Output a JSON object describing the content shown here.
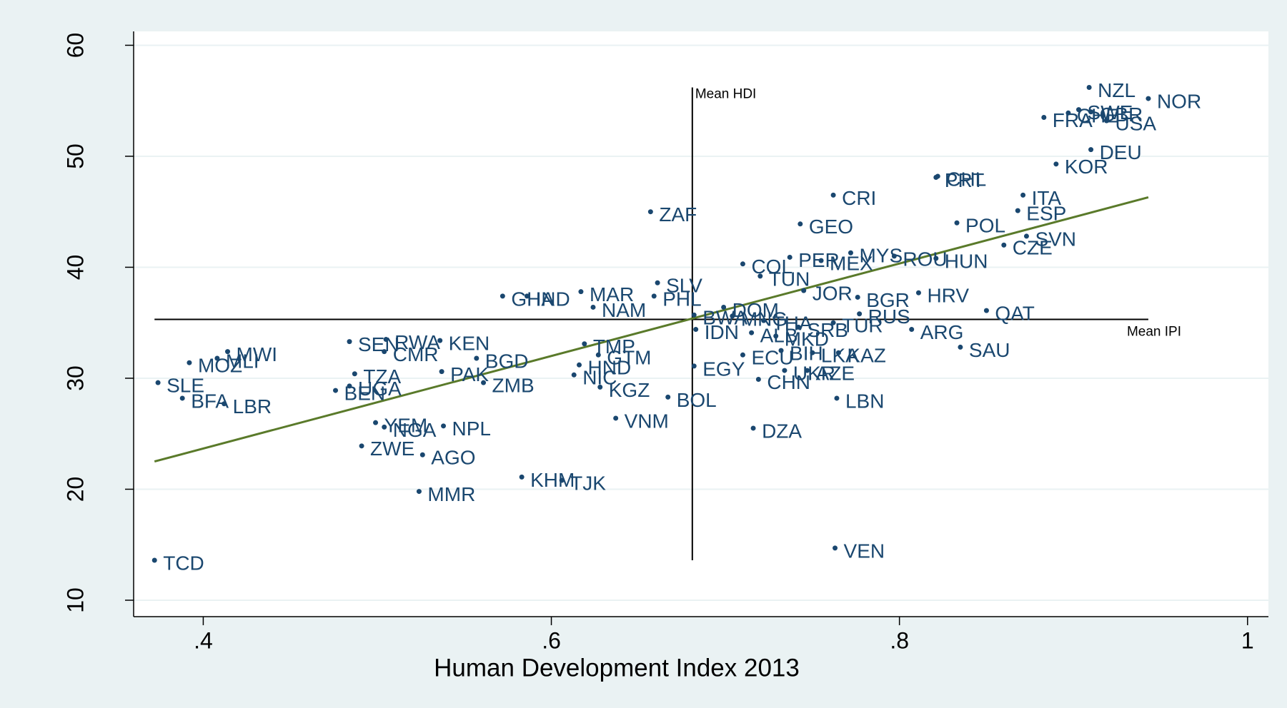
{
  "chart_data": {
    "type": "scatter",
    "xlabel": "Human Development Index 2013",
    "xlim": [
      0.36,
      1.012
    ],
    "ylim": [
      8.52,
      61.25
    ],
    "xticks": [
      {
        "value": 0.4,
        "label": ".4"
      },
      {
        "value": 0.6,
        "label": ".6"
      },
      {
        "value": 0.8,
        "label": ".8"
      },
      {
        "value": 1,
        "label": "1"
      }
    ],
    "yticks": [
      10,
      20,
      30,
      40,
      50,
      60
    ],
    "grid": true,
    "color": "#1a476f",
    "labels": [
      "NZL",
      "NOR",
      "CHE",
      "SWE",
      "GBR",
      "USA",
      "FRA",
      "DEU",
      "KOR",
      "CHL",
      "PRT",
      "CRI",
      "ITA",
      "ESP",
      "ZAF",
      "GEO",
      "POL",
      "SVN",
      "CZE",
      "PER",
      "MEX",
      "MYS",
      "ROU",
      "HUN",
      "COL",
      "TUN",
      "SLV",
      "JOR",
      "HRV",
      "GHA",
      "IND",
      "MAR",
      "PHL",
      "BGR",
      "NAM",
      "QAT",
      "DOM",
      "RUS",
      "BWA",
      "MNG",
      "THA",
      "TUR",
      "SRB",
      "ARG",
      "IDN",
      "ALB",
      "MKD",
      "SAU",
      "BIH",
      "LKA",
      "KAZ",
      "ECU",
      "UKR",
      "AZE",
      "EGY",
      "CHN",
      "LBN",
      "BOL",
      "DZA",
      "VNM",
      "KGZ",
      "NIC",
      "HND",
      "GTM",
      "TMP",
      "VEN",
      "TCD",
      "SLE",
      "BFA",
      "LBR",
      "MOZ",
      "MLI",
      "MWI",
      "SEN",
      "RWA",
      "KEN",
      "CMR",
      "BGD",
      "TZA",
      "PAK",
      "ZMB",
      "UGA",
      "BEN",
      "YEM",
      "NGA",
      "NPL",
      "ZWE",
      "AGO",
      "MMR",
      "KHM",
      "TJK"
    ],
    "x": [
      0.909,
      0.943,
      0.897,
      0.903,
      0.91,
      0.919,
      0.883,
      0.91,
      0.89,
      0.822,
      0.821,
      0.762,
      0.871,
      0.868,
      0.657,
      0.743,
      0.833,
      0.873,
      0.86,
      0.737,
      0.755,
      0.772,
      0.797,
      0.821,
      0.71,
      0.72,
      0.661,
      0.745,
      0.811,
      0.572,
      0.586,
      0.617,
      0.659,
      0.776,
      0.624,
      0.85,
      0.699,
      0.777,
      0.682,
      0.704,
      0.722,
      0.762,
      0.742,
      0.807,
      0.683,
      0.715,
      0.729,
      0.835,
      0.732,
      0.75,
      0.765,
      0.71,
      0.734,
      0.747,
      0.682,
      0.719,
      0.764,
      0.667,
      0.716,
      0.637,
      0.628,
      0.613,
      0.616,
      0.627,
      0.619,
      0.763,
      0.372,
      0.374,
      0.388,
      0.412,
      0.392,
      0.408,
      0.414,
      0.484,
      0.505,
      0.536,
      0.504,
      0.557,
      0.487,
      0.537,
      0.561,
      0.484,
      0.476,
      0.499,
      0.504,
      0.538,
      0.491,
      0.526,
      0.524,
      0.583,
      0.606
    ],
    "y": [
      56.2,
      55.2,
      53.9,
      54.2,
      54.0,
      53.2,
      53.5,
      50.6,
      49.3,
      48.2,
      48.1,
      46.5,
      46.5,
      45.1,
      45.0,
      43.9,
      44.0,
      42.8,
      42.0,
      40.9,
      40.6,
      41.3,
      41.0,
      40.8,
      40.3,
      39.2,
      38.6,
      37.9,
      37.7,
      37.4,
      37.4,
      37.8,
      37.4,
      37.3,
      36.4,
      36.1,
      36.4,
      35.8,
      35.7,
      35.6,
      35.2,
      35.0,
      34.6,
      34.4,
      34.4,
      34.1,
      33.8,
      32.8,
      32.5,
      32.3,
      32.3,
      32.1,
      30.7,
      30.7,
      31.1,
      29.9,
      28.2,
      28.3,
      25.5,
      26.4,
      29.2,
      30.3,
      31.2,
      32.1,
      33.1,
      14.7,
      13.6,
      29.6,
      28.2,
      27.7,
      31.4,
      31.8,
      32.4,
      33.3,
      33.5,
      33.4,
      32.4,
      31.8,
      30.4,
      30.6,
      29.6,
      29.3,
      28.9,
      26.0,
      25.6,
      25.7,
      23.9,
      23.1,
      19.8,
      21.1,
      20.8
    ],
    "fit_line": {
      "color": "#5a7a2a",
      "x": [
        0.372,
        0.943
      ],
      "y": [
        22.5,
        46.3
      ]
    },
    "reference_lines": [
      {
        "label": "Mean HDI",
        "x": [
          0.681,
          0.681
        ],
        "y": [
          13.6,
          56.2
        ]
      },
      {
        "label": "Mean IPI",
        "x": [
          0.372,
          0.943
        ],
        "y": [
          35.3,
          35.3
        ]
      }
    ]
  }
}
